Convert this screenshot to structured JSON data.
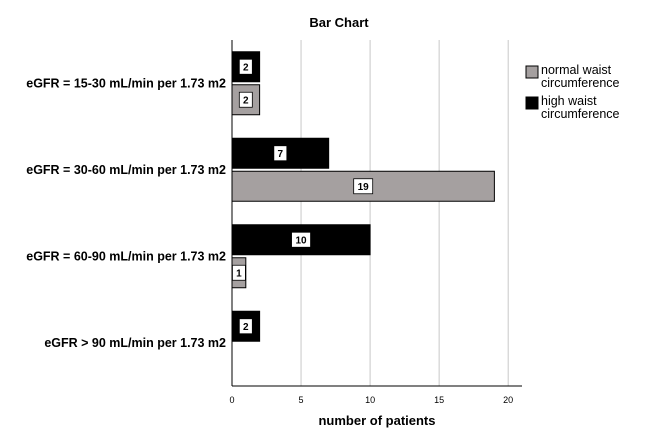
{
  "chart_data": {
    "type": "bar",
    "orientation": "horizontal",
    "title": "Bar Chart",
    "xlabel": "number of patients",
    "ylabel": "",
    "xlim": [
      0,
      21
    ],
    "xticks": [
      0,
      5,
      10,
      15,
      20
    ],
    "grid": true,
    "legend_position": "top-right",
    "categories": [
      "eGFR = 15-30 mL/min per 1.73 m2",
      "eGFR = 30-60 mL/min per 1.73 m2",
      "eGFR = 60-90 mL/min per 1.73 m2",
      "eGFR > 90 mL/min per 1.73 m2"
    ],
    "series": [
      {
        "name": "high waist circumference",
        "legend_lines": [
          "high waist",
          "circumference"
        ],
        "color": "#000000",
        "values": [
          2,
          7,
          10,
          2
        ]
      },
      {
        "name": "normal waist circumference",
        "legend_lines": [
          "normal waist",
          "circumference"
        ],
        "color": "#a5a0a0",
        "values": [
          2,
          19,
          1,
          null
        ]
      }
    ],
    "legend_order": [
      1,
      0
    ]
  }
}
